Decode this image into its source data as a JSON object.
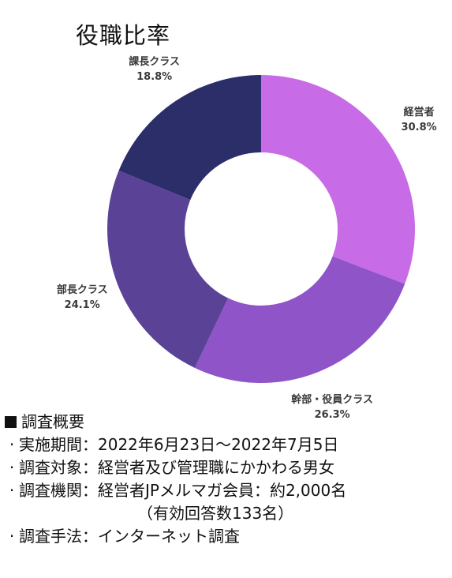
{
  "title": "役職比率",
  "chart_data": {
    "type": "pie",
    "title": "役職比率",
    "slices": [
      {
        "label": "経営者",
        "value": 30.8,
        "display": "30.8%",
        "color": "#C86BE6"
      },
      {
        "label": "幹部・役員クラス",
        "value": 26.3,
        "display": "26.3%",
        "color": "#8E54C8"
      },
      {
        "label": "部長クラス",
        "value": 24.1,
        "display": "24.1%",
        "color": "#5A4296"
      },
      {
        "label": "課長クラス",
        "value": 18.8,
        "display": "18.8%",
        "color": "#2B2E68"
      }
    ]
  },
  "survey": {
    "heading": "調査概要",
    "items": [
      {
        "label": "実施期間",
        "value": "2022年6月23日～2022年7月5日"
      },
      {
        "label": "調査対象",
        "value": "経営者及び管理職にかかわる男女"
      },
      {
        "label": "調査機関",
        "value": "経営者JPメルマガ会員：約2,000名"
      },
      {
        "label": "",
        "value": "（有効回答数133名）"
      },
      {
        "label": "調査手法",
        "value": "インターネット調査"
      }
    ]
  }
}
